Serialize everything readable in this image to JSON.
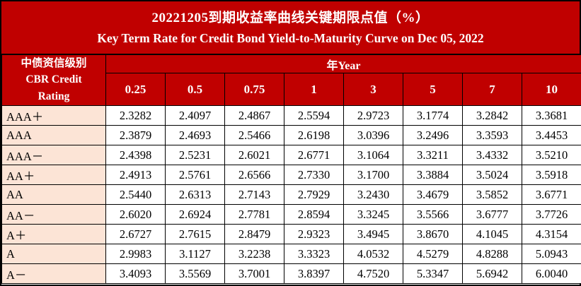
{
  "banner": {
    "title_zh": "20221205到期收益率曲线关键期限点值（%）",
    "title_en": "Key Term Rate for Credit Bond Yield-to-Maturity Curve on Dec 05, 2022"
  },
  "colors": {
    "banner_red": "#C00000",
    "rating_column_bg": "#FCE4D6",
    "border": "#000000",
    "header_text": "#FFFFFF",
    "data_text": "#000000"
  },
  "chart_data": {
    "type": "table",
    "title": "20221205到期收益率曲线关键期限点值（%）",
    "subtitle": "Key Term Rate for Credit Bond Yield-to-Maturity Curve on Dec 05, 2022",
    "row_header_label_zh": "中债资信级别",
    "row_header_label_en": "CBR Credit Rating",
    "column_group_label": "年Year",
    "columns": [
      "0.25",
      "0.5",
      "0.75",
      "1",
      "3",
      "5",
      "7",
      "10"
    ],
    "rows": [
      {
        "rating": "AAA＋",
        "values": [
          "2.3282",
          "2.4097",
          "2.4867",
          "2.5594",
          "2.9723",
          "3.1774",
          "3.2842",
          "3.3681"
        ]
      },
      {
        "rating": "AAA",
        "values": [
          "2.3879",
          "2.4693",
          "2.5466",
          "2.6198",
          "3.0396",
          "3.2496",
          "3.3593",
          "3.4453"
        ]
      },
      {
        "rating": "AAA－",
        "values": [
          "2.4398",
          "2.5231",
          "2.6021",
          "2.6771",
          "3.1064",
          "3.3211",
          "3.4332",
          "3.5210"
        ]
      },
      {
        "rating": "AA＋",
        "values": [
          "2.4913",
          "2.5761",
          "2.6566",
          "2.7330",
          "3.1700",
          "3.3884",
          "3.5024",
          "3.5918"
        ]
      },
      {
        "rating": "AA",
        "values": [
          "2.5440",
          "2.6313",
          "2.7143",
          "2.7929",
          "3.2430",
          "3.4679",
          "3.5852",
          "3.6771"
        ]
      },
      {
        "rating": "AA－",
        "values": [
          "2.6020",
          "2.6924",
          "2.7781",
          "2.8594",
          "3.3245",
          "3.5566",
          "3.6777",
          "3.7726"
        ]
      },
      {
        "rating": "A＋",
        "values": [
          "2.6727",
          "2.7615",
          "2.8479",
          "2.9323",
          "3.4945",
          "3.8670",
          "4.1045",
          "4.3154"
        ]
      },
      {
        "rating": "A",
        "values": [
          "2.9983",
          "3.1127",
          "3.2238",
          "3.3323",
          "4.0532",
          "4.5279",
          "4.8288",
          "5.0943"
        ]
      },
      {
        "rating": "A－",
        "values": [
          "3.4093",
          "3.5569",
          "3.7001",
          "3.8397",
          "4.7520",
          "5.3347",
          "5.6942",
          "6.0040"
        ]
      }
    ]
  }
}
